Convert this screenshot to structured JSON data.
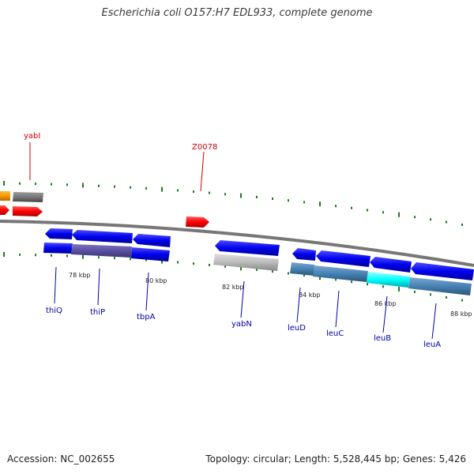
{
  "title": "Escherichia coli O157:H7 EDL933, complete genome",
  "footer": {
    "accession": "Accession: NC_002655",
    "summary": "Topology: circular; Length: 5,528,445 bp; Genes: 5,426"
  },
  "kbp_labels": [
    "78 kbp",
    "80 kbp",
    "82 kbp",
    "84 kbp",
    "86 kbp",
    "88 kbp"
  ],
  "gene_labels_top": [
    {
      "text": "yabI",
      "color": "#cc0000"
    },
    {
      "text": "Z0078",
      "color": "#cc0000"
    }
  ],
  "gene_labels_bottom": [
    {
      "text": "thiQ",
      "color": "#0000aa"
    },
    {
      "text": "thiP",
      "color": "#0000aa"
    },
    {
      "text": "tbpA",
      "color": "#0000aa"
    },
    {
      "text": "yabN",
      "color": "#0000aa"
    },
    {
      "text": "leuD",
      "color": "#0000aa"
    },
    {
      "text": "leuC",
      "color": "#0000aa"
    },
    {
      "text": "leuB",
      "color": "#0000aa"
    },
    {
      "text": "leuA",
      "color": "#0000aa"
    }
  ],
  "colors": {
    "forward_gene": "#ff0000",
    "reverse_gene": "#0000ee",
    "backbone": "#808080",
    "tick": "#1a7a1a",
    "cog_orange": "#ff9900",
    "cog_gray": "#777777",
    "cog_purple": "#5a4fa0",
    "cog_steel": "#4682b4",
    "cog_cyan": "#00ffff",
    "cog_silver": "#bbbbbb"
  }
}
